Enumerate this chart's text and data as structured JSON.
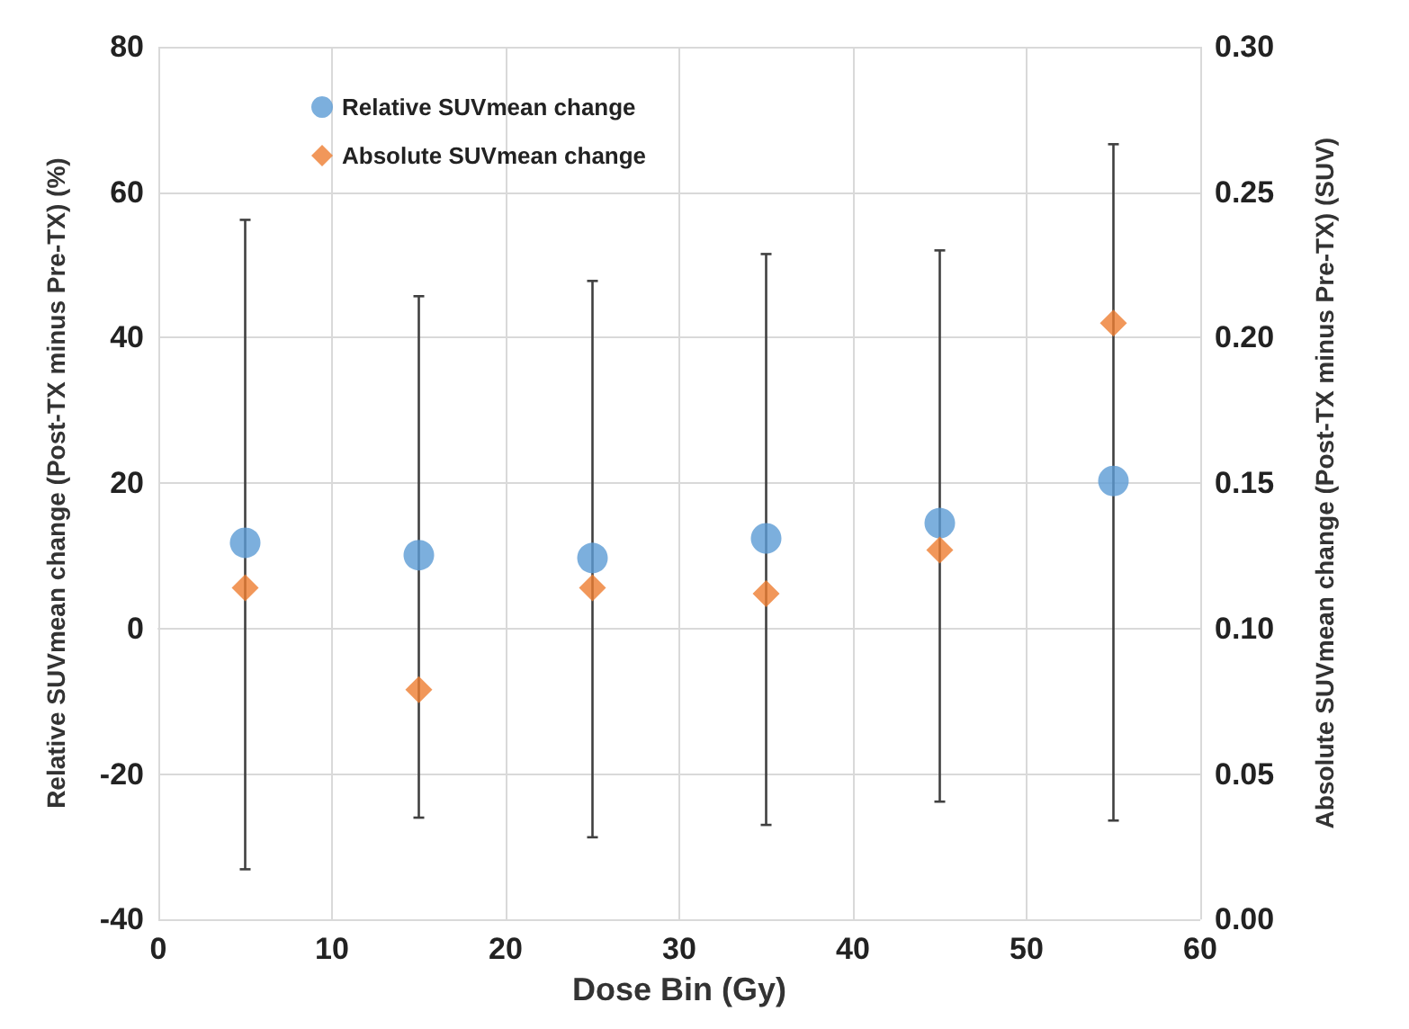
{
  "chart_data": {
    "type": "scatter",
    "xlabel": "Dose Bin (Gy)",
    "ylabel": "Relative SUVmean change (Post-TX minus Pre-TX) (%)",
    "y2label": "Absolute SUVmean change (Post-TX minus Pre-TX) (SUV)",
    "x": [
      5,
      15,
      25,
      35,
      45,
      55
    ],
    "series": [
      {
        "name": "Relative SUVmean change",
        "color": "#5b9bd5",
        "marker": "circle",
        "values": [
          11.8,
          10.1,
          9.7,
          12.4,
          14.5,
          20.3
        ],
        "errors": [
          [
            -33.1,
            56.2
          ],
          [
            -26.0,
            45.7
          ],
          [
            -28.7,
            47.8
          ],
          [
            -27.0,
            51.5
          ],
          [
            -23.8,
            52.0
          ],
          [
            -26.4,
            66.6
          ]
        ]
      },
      {
        "name": "Absolute SUVmean change",
        "color": "#ed7d31",
        "marker": "diamond",
        "axis": "y2",
        "values": [
          0.114,
          0.079,
          0.114,
          0.112,
          0.127,
          0.205
        ]
      }
    ],
    "xlim": [
      0,
      60
    ],
    "xticks": [
      0,
      10,
      20,
      30,
      40,
      50,
      60
    ],
    "ylim": [
      -40,
      80
    ],
    "yticks": [
      -40,
      -20,
      0,
      20,
      40,
      60,
      80
    ],
    "y2lim": [
      0,
      0.3
    ],
    "y2ticks": [
      {
        "value": 0,
        "label": "0.00"
      },
      {
        "value": 0.05,
        "label": "0.05"
      },
      {
        "value": 0.1,
        "label": "0.10"
      },
      {
        "value": 0.15,
        "label": "0.15"
      },
      {
        "value": 0.2,
        "label": "0.20"
      },
      {
        "value": 0.25,
        "label": "0.25"
      },
      {
        "value": 0.3,
        "label": "0.30"
      }
    ],
    "grid": true,
    "legend": "top left"
  }
}
